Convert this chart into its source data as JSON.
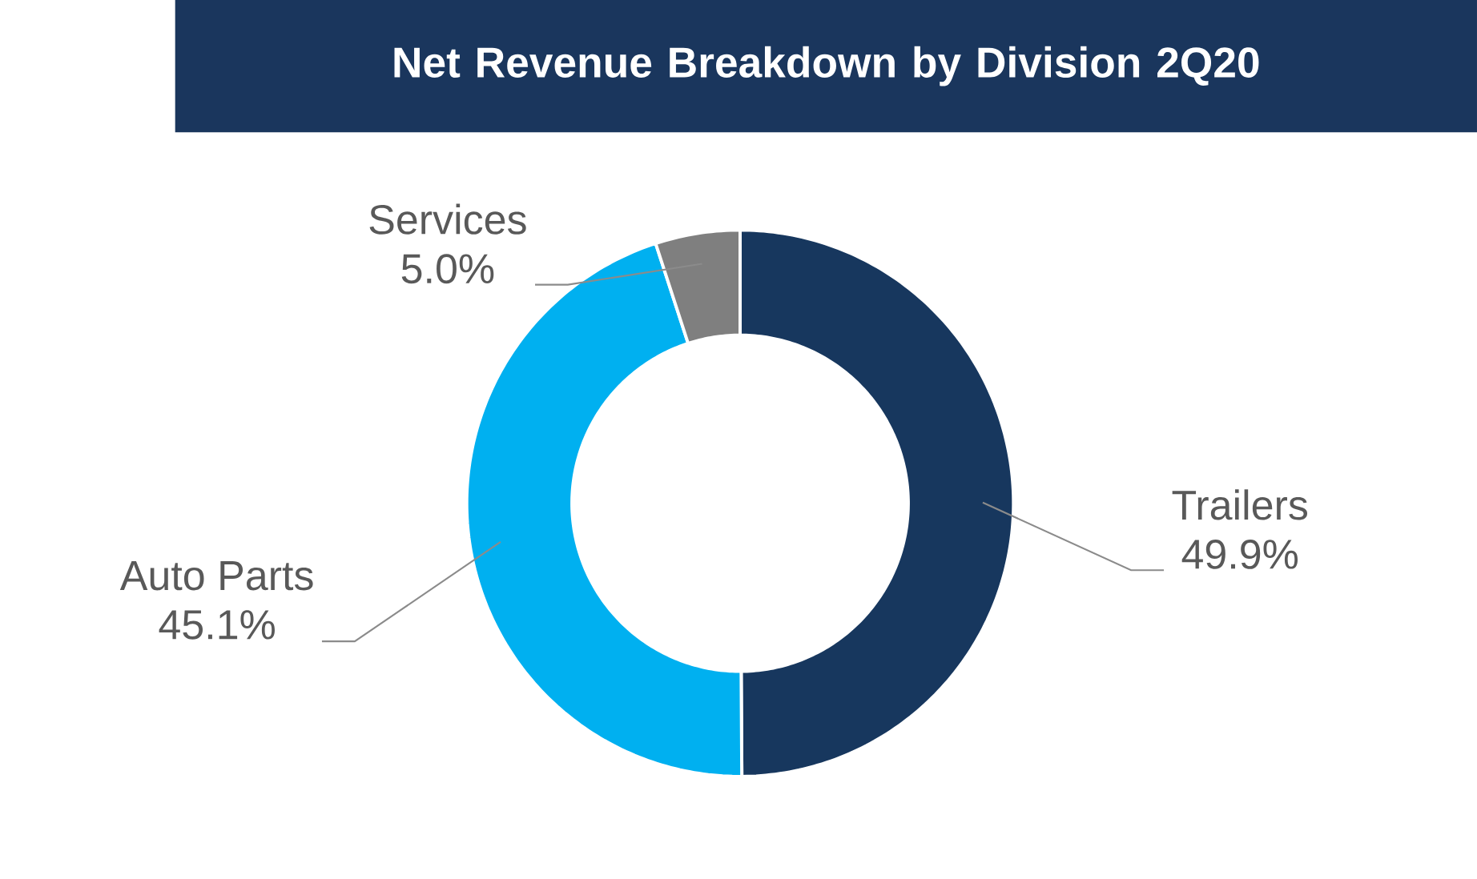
{
  "chart_data": {
    "type": "donut",
    "title": "Net Revenue Breakdown by Division 2Q20",
    "categories": [
      "Trailers",
      "Auto Parts",
      "Services"
    ],
    "values": [
      49.9,
      45.1,
      5.0
    ],
    "colors": [
      "#17375e",
      "#00b0f0",
      "#7f7f7f"
    ],
    "value_labels": [
      "49.9%",
      "45.1%",
      "5.0%"
    ]
  }
}
